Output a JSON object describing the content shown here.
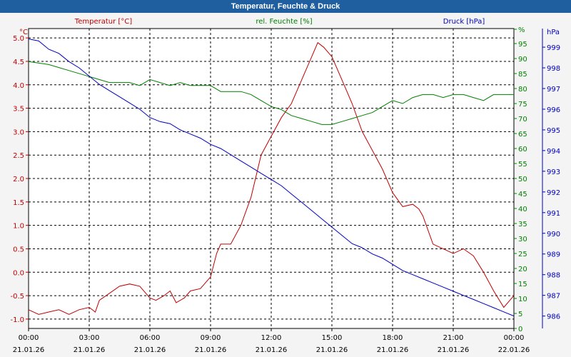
{
  "window": {
    "title": "Temperatur, Feuchte & Druck"
  },
  "chart_data": {
    "type": "line",
    "title": "Temperatur, Feuchte & Druck",
    "colors": {
      "temperature": "#c00000",
      "humidity": "#008000",
      "pressure": "#0000c0",
      "grid": "#000000"
    },
    "x_ticks": [
      {
        "t": 0,
        "time": "00:00",
        "date": "21.01.26"
      },
      {
        "t": 3,
        "time": "03:00",
        "date": "21.01.26"
      },
      {
        "t": 6,
        "time": "06:00",
        "date": "21.01.26"
      },
      {
        "t": 9,
        "time": "09:00",
        "date": "21.01.26"
      },
      {
        "t": 12,
        "time": "12:00",
        "date": "21.01.26"
      },
      {
        "t": 15,
        "time": "15:00",
        "date": "21.01.26"
      },
      {
        "t": 18,
        "time": "18:00",
        "date": "21.01.26"
      },
      {
        "t": 21,
        "time": "21:00",
        "date": "21.01.26"
      },
      {
        "t": 24,
        "time": "00:00",
        "date": "22.01.26"
      }
    ],
    "x_range": [
      0,
      24
    ],
    "axes": {
      "temperature": {
        "unit": "°C",
        "title": "Temperatur [°C]",
        "range": [
          -1.2,
          5.2
        ],
        "ticks": [
          "-1.0",
          "-0.5",
          "0.0",
          "0.5",
          "1.0",
          "1.5",
          "2.0",
          "2.5",
          "3.0",
          "3.5",
          "4.0",
          "4.5",
          "5.0"
        ]
      },
      "humidity": {
        "unit": "%",
        "title": "rel. Feuchte [%]",
        "range": [
          0,
          100
        ],
        "ticks": [
          "0",
          "5",
          "10",
          "15",
          "20",
          "25",
          "30",
          "35",
          "40",
          "45",
          "50",
          "55",
          "60",
          "65",
          "70",
          "75",
          "80",
          "85",
          "90",
          "95",
          "%"
        ]
      },
      "pressure": {
        "unit": "hPa",
        "title": "Druck [hPa]",
        "range": [
          985.4,
          999.9
        ],
        "ticks": [
          "986",
          "987",
          "988",
          "989",
          "990",
          "991",
          "992",
          "993",
          "994",
          "995",
          "996",
          "997",
          "998",
          "999"
        ]
      }
    },
    "series": [
      {
        "name": "Temperatur [°C]",
        "key": "temperature",
        "t": [
          0,
          0.5,
          1,
          1.5,
          2,
          2.5,
          3,
          3.3,
          3.5,
          4,
          4.5,
          5,
          5.5,
          6,
          6.3,
          6.7,
          7,
          7.3,
          7.7,
          8,
          8.5,
          9,
          9.3,
          9.5,
          10,
          10.5,
          11,
          11.5,
          12,
          12.5,
          13,
          13.5,
          14,
          14.3,
          14.6,
          14.8,
          15,
          15.5,
          16,
          16.5,
          17,
          17.5,
          18,
          18.5,
          19,
          19.3,
          19.5,
          20,
          20.5,
          21,
          21.5,
          22,
          22.5,
          23,
          23.5,
          24
        ],
        "values": [
          -0.8,
          -0.9,
          -0.85,
          -0.8,
          -0.9,
          -0.8,
          -0.75,
          -0.85,
          -0.6,
          -0.45,
          -0.3,
          -0.25,
          -0.3,
          -0.55,
          -0.6,
          -0.5,
          -0.4,
          -0.65,
          -0.55,
          -0.4,
          -0.35,
          -0.1,
          0.4,
          0.6,
          0.6,
          1.0,
          1.6,
          2.5,
          2.9,
          3.3,
          3.6,
          4.1,
          4.6,
          4.9,
          4.8,
          4.7,
          4.6,
          4.1,
          3.6,
          3.0,
          2.6,
          2.2,
          1.7,
          1.4,
          1.45,
          1.35,
          1.2,
          0.6,
          0.5,
          0.4,
          0.5,
          0.35,
          0.0,
          -0.4,
          -0.75,
          -0.5
        ]
      },
      {
        "name": "rel. Feuchte [%]",
        "key": "humidity",
        "t": [
          0,
          1,
          1.5,
          2,
          3,
          4,
          4.5,
          5,
          5.5,
          6,
          6.5,
          7,
          7.5,
          8,
          8.5,
          9,
          9.5,
          10,
          10.5,
          11,
          11.5,
          12,
          12.5,
          13,
          13.5,
          14,
          14.5,
          15,
          15.5,
          16,
          16.5,
          17,
          17.5,
          18,
          18.5,
          19,
          19.5,
          20,
          20.5,
          21,
          21.5,
          22,
          22.5,
          23,
          23.5,
          24
        ],
        "values": [
          89,
          88,
          87,
          86,
          84,
          82,
          82,
          82,
          81,
          83,
          82,
          81,
          82,
          81,
          81,
          81,
          79,
          79,
          79,
          78,
          76,
          74,
          73,
          71,
          70,
          69,
          68,
          68,
          69,
          70,
          71,
          72,
          74,
          76,
          75,
          77,
          78,
          78,
          77,
          78,
          78,
          77,
          76,
          78,
          78,
          78
        ],
        "dashes": []
      },
      {
        "name": "Druck [hPa]",
        "key": "pressure",
        "t": [
          0,
          0.5,
          1,
          1.5,
          2,
          2.5,
          3,
          3.5,
          4,
          4.5,
          5,
          5.5,
          6,
          6.5,
          7,
          7.5,
          8,
          8.5,
          9,
          9.5,
          10,
          10.5,
          11,
          11.5,
          12,
          12.5,
          13,
          13.5,
          14,
          14.5,
          15,
          15.5,
          16,
          16.5,
          17,
          17.5,
          18,
          18.5,
          19,
          19.5,
          20,
          20.5,
          21,
          21.5,
          22,
          22.5,
          23,
          23.5,
          24
        ],
        "values": [
          999.4,
          999.3,
          998.9,
          998.7,
          998.3,
          998.0,
          997.6,
          997.2,
          996.9,
          996.6,
          996.3,
          996.0,
          995.6,
          995.4,
          995.3,
          995.0,
          994.8,
          994.6,
          994.3,
          994.1,
          993.8,
          993.5,
          993.2,
          992.9,
          992.6,
          992.3,
          991.9,
          991.5,
          991.1,
          990.7,
          990.3,
          989.9,
          989.5,
          989.3,
          989.0,
          988.8,
          988.5,
          988.2,
          988.0,
          987.8,
          987.6,
          987.4,
          987.2,
          987.0,
          986.8,
          986.6,
          986.4,
          986.2,
          986.0
        ]
      }
    ]
  }
}
